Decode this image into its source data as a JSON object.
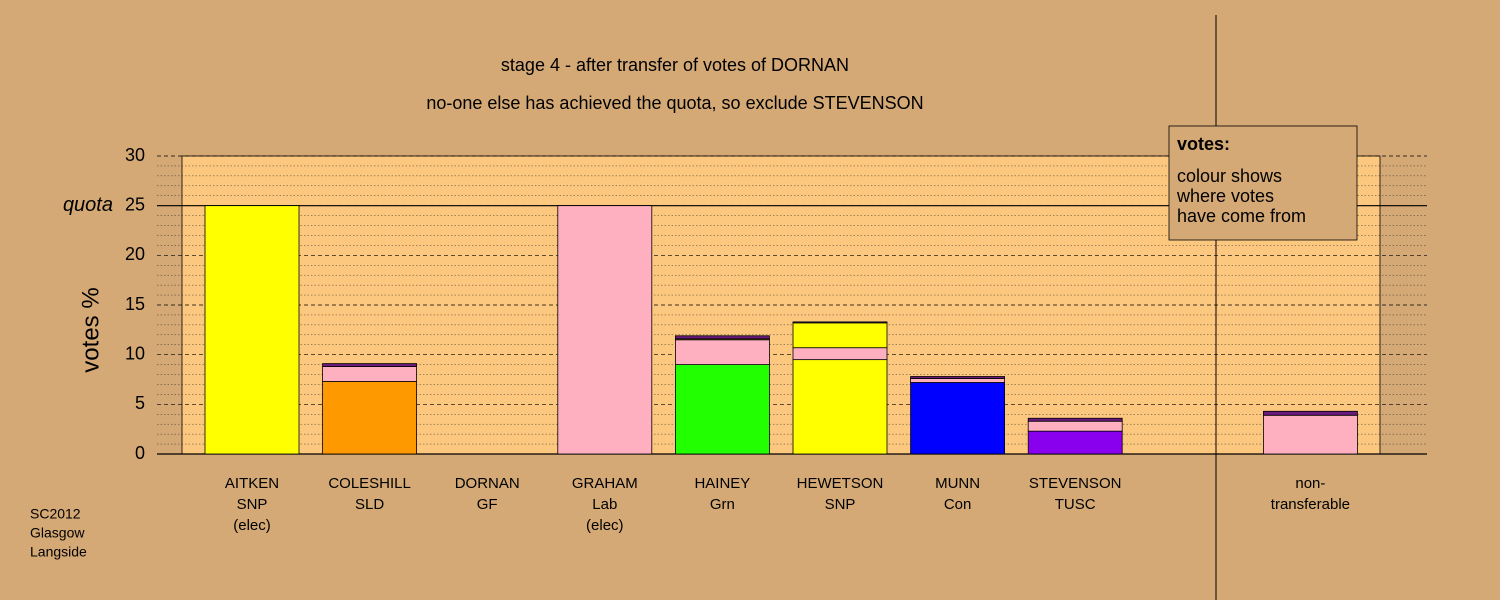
{
  "chart_data": {
    "type": "bar",
    "stacked": true,
    "title": "stage 4 - after transfer of votes of DORNAN",
    "subtitle": "no-one else has achieved the quota, so exclude STEVENSON",
    "y_label": "votes %",
    "quota_label": "quota",
    "quota": 25,
    "categories": [
      [
        "AITKEN",
        "SNP",
        "(elec)"
      ],
      [
        "COLESHILL",
        "SLD"
      ],
      [
        "DORNAN",
        "GF"
      ],
      [
        "GRAHAM",
        "Lab",
        "(elec)"
      ],
      [
        "HAINEY",
        "Grn"
      ],
      [
        "HEWETSON",
        "SNP"
      ],
      [
        "MUNN",
        "Con"
      ],
      [
        "STEVENSON",
        "TUSC"
      ],
      null,
      [
        "non-",
        "transferable"
      ]
    ],
    "series": [
      {
        "colors": [
          "#ffff00",
          "#ff9900",
          "#5a1a3a",
          "#ffb0c0",
          "#22ff00",
          "#ffff00",
          "#0000ff",
          "#8800ee",
          null,
          "#ffb0c0"
        ],
        "values": [
          25,
          7.3,
          0,
          25,
          9,
          9.5,
          7.2,
          2.3,
          null,
          3.9
        ]
      },
      {
        "color": "#ffb0c0",
        "values": [
          0,
          1.5,
          0,
          0,
          2.5,
          1.2,
          0.4,
          1.0,
          null,
          0
        ]
      },
      {
        "color": "#ffff00",
        "values": [
          0,
          0,
          0,
          0,
          0.1,
          2.5,
          0,
          0,
          null,
          0
        ]
      },
      {
        "color": "#6a1a7a",
        "values": [
          0,
          0.3,
          0,
          0,
          0.3,
          0.1,
          0.2,
          0.3,
          null,
          0.4
        ]
      }
    ],
    "ylim": [
      0,
      30
    ],
    "yticks": [
      0,
      5,
      10,
      15,
      20,
      25,
      30
    ],
    "grid": true,
    "legend": {
      "title": "votes:",
      "lines": [
        "colour shows",
        "where votes",
        "have come from"
      ]
    },
    "footnote": [
      "SC2012",
      "Glasgow",
      "Langside"
    ]
  }
}
